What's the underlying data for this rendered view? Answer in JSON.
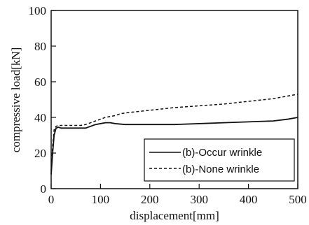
{
  "chart_data": {
    "type": "line",
    "title": "",
    "xlabel": "displacement[mm]",
    "ylabel": "compressive load[kN]",
    "xlim": [
      0,
      500
    ],
    "ylim": [
      0,
      100
    ],
    "xticks": [
      "0",
      "100",
      "200",
      "300",
      "400",
      "500"
    ],
    "yticks": [
      "0",
      "20",
      "40",
      "60",
      "80",
      "100"
    ],
    "grid": false,
    "legend_position": "bottom-right",
    "series": [
      {
        "name": "(b)-Occur wrinkle",
        "style": "solid",
        "color": "#111111",
        "x": [
          0,
          3,
          6,
          10,
          15,
          20,
          30,
          40,
          50,
          60,
          70,
          80,
          90,
          100,
          110,
          120,
          130,
          150,
          200,
          250,
          300,
          350,
          400,
          450,
          480,
          500
        ],
        "y": [
          8,
          20,
          30,
          34,
          34.5,
          34,
          34,
          34,
          34,
          34,
          34,
          35,
          36,
          36.5,
          37,
          37,
          36.5,
          36,
          36,
          36,
          36.5,
          37,
          37.5,
          38,
          39,
          40
        ]
      },
      {
        "name": "(b)-None wrinkle",
        "style": "dashed",
        "color": "#111111",
        "x": [
          0,
          3,
          6,
          10,
          15,
          20,
          30,
          40,
          50,
          60,
          70,
          80,
          90,
          100,
          110,
          120,
          130,
          140,
          150,
          200,
          250,
          300,
          350,
          400,
          450,
          480,
          500
        ],
        "y": [
          10,
          24,
          33,
          35,
          35.5,
          35.5,
          35.5,
          35.5,
          35.5,
          35.5,
          36,
          37,
          38,
          39,
          40,
          40.5,
          41,
          42,
          42.5,
          44,
          45.5,
          46.5,
          47.5,
          49,
          50.5,
          52,
          53
        ]
      }
    ]
  }
}
